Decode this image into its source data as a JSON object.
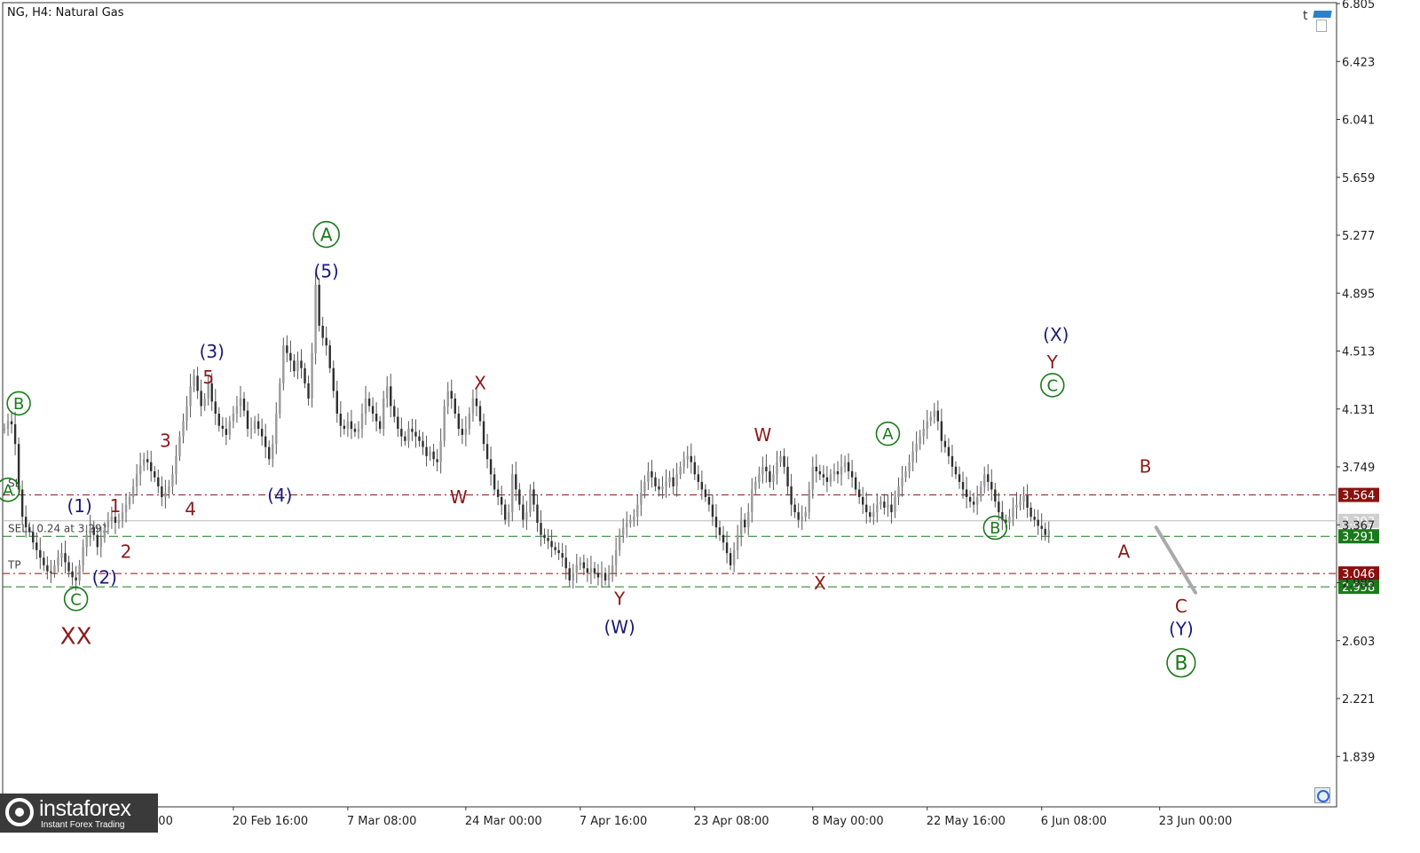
{
  "header": {
    "title": "NG, H4:  Natural Gas"
  },
  "chart_data": {
    "type": "candlestick",
    "symbol": "NG",
    "timeframe": "H4",
    "instrument": "Natural Gas",
    "y_ticks": [
      "6.805",
      "6.423",
      "6.041",
      "5.659",
      "5.277",
      "4.895",
      "4.513",
      "4.131",
      "3.749",
      "3.367",
      "2.985",
      "2.603",
      "2.221",
      "1.839"
    ],
    "ylim": [
      1.5,
      6.805
    ],
    "x_ticks": [
      {
        "label": "20 Feb 16:00",
        "i": 64
      },
      {
        "label": "7 Mar 08:00",
        "i": 96
      },
      {
        "label": "24 Mar 00:00",
        "i": 129
      },
      {
        "label": "7 Apr 16:00",
        "i": 161
      },
      {
        "label": "23 Apr 08:00",
        "i": 193
      },
      {
        "label": "8 May 00:00",
        "i": 226
      },
      {
        "label": "22 May 16:00",
        "i": 258
      },
      {
        "label": "6 Jun 08:00",
        "i": 290
      },
      {
        "label": "23 Jun 00:00",
        "i": 323
      }
    ],
    "partial_x_tick": "eb 00:00",
    "series": [
      {
        "name": "Natural Gas",
        "closes": [
          4.0,
          4.05,
          4.03,
          3.9,
          3.6,
          3.42,
          3.35,
          3.32,
          3.25,
          3.2,
          3.15,
          3.1,
          3.06,
          3.05,
          3.1,
          3.15,
          3.18,
          3.12,
          3.06,
          3.02,
          3.0,
          3.1,
          3.22,
          3.3,
          3.35,
          3.3,
          3.22,
          3.28,
          3.35,
          3.4,
          3.42,
          3.38,
          3.4,
          3.45,
          3.5,
          3.55,
          3.62,
          3.7,
          3.76,
          3.8,
          3.78,
          3.72,
          3.68,
          3.62,
          3.55,
          3.58,
          3.62,
          3.7,
          3.82,
          3.95,
          4.05,
          4.15,
          4.28,
          4.35,
          4.25,
          4.15,
          4.2,
          4.3,
          4.18,
          4.1,
          4.02,
          4.0,
          3.96,
          4.05,
          4.1,
          4.15,
          4.2,
          4.12,
          4.0,
          4.0,
          4.05,
          4.0,
          3.95,
          3.88,
          3.8,
          3.9,
          4.1,
          4.3,
          4.55,
          4.5,
          4.45,
          4.38,
          4.45,
          4.4,
          4.3,
          4.2,
          4.5,
          4.95,
          4.68,
          4.6,
          4.55,
          4.4,
          4.25,
          4.1,
          4.02,
          4.0,
          4.05,
          4.0,
          3.98,
          4.0,
          4.1,
          4.2,
          4.15,
          4.1,
          4.05,
          4.0,
          4.2,
          4.28,
          4.15,
          4.08,
          4.0,
          3.95,
          3.92,
          4.0,
          3.98,
          3.95,
          3.92,
          3.88,
          3.82,
          3.85,
          3.8,
          3.78,
          3.92,
          4.15,
          4.25,
          4.2,
          4.1,
          4.0,
          3.96,
          4.0,
          4.1,
          4.2,
          4.15,
          4.05,
          3.9,
          3.8,
          3.7,
          3.6,
          3.55,
          3.5,
          3.4,
          3.45,
          3.7,
          3.6,
          3.5,
          3.4,
          3.45,
          3.6,
          3.5,
          3.38,
          3.3,
          3.28,
          3.26,
          3.22,
          3.2,
          3.18,
          3.15,
          3.08,
          3.0,
          3.05,
          3.1,
          3.12,
          3.08,
          3.05,
          3.08,
          3.05,
          3.02,
          3.05,
          3.0,
          3.05,
          3.1,
          3.2,
          3.3,
          3.35,
          3.38,
          3.4,
          3.42,
          3.5,
          3.58,
          3.65,
          3.72,
          3.68,
          3.62,
          3.6,
          3.62,
          3.65,
          3.68,
          3.62,
          3.7,
          3.75,
          3.8,
          3.82,
          3.78,
          3.7,
          3.65,
          3.6,
          3.55,
          3.5,
          3.42,
          3.35,
          3.3,
          3.25,
          3.18,
          3.1,
          3.2,
          3.3,
          3.4,
          3.35,
          3.45,
          3.6,
          3.65,
          3.7,
          3.75,
          3.72,
          3.65,
          3.7,
          3.78,
          3.82,
          3.75,
          3.62,
          3.5,
          3.45,
          3.4,
          3.42,
          3.45,
          3.6,
          3.75,
          3.72,
          3.7,
          3.68,
          3.65,
          3.7,
          3.72,
          3.7,
          3.75,
          3.78,
          3.72,
          3.68,
          3.6,
          3.55,
          3.5,
          3.45,
          3.42,
          3.45,
          3.5,
          3.52,
          3.48,
          3.5,
          3.45,
          3.55,
          3.62,
          3.68,
          3.72,
          3.78,
          3.85,
          3.9,
          3.95,
          4.0,
          4.05,
          4.08,
          4.12,
          4.05,
          3.92,
          3.88,
          3.82,
          3.75,
          3.7,
          3.65,
          3.6,
          3.55,
          3.52,
          3.5,
          3.55,
          3.62,
          3.7,
          3.65,
          3.6,
          3.52,
          3.45,
          3.4,
          3.38,
          3.42,
          3.48,
          3.5,
          3.52,
          3.56,
          3.48,
          3.42,
          3.4,
          3.36,
          3.34,
          3.3,
          3.33
        ]
      },
      {
        "name": "projection",
        "points": [
          [
            322,
            3.35
          ],
          [
            333,
            2.92
          ]
        ]
      }
    ],
    "horizontal_levels": [
      {
        "value": 3.564,
        "label": "3.564",
        "style": "dash-dot",
        "color": "#8b1010"
      },
      {
        "value": 3.393,
        "label": "3.393",
        "style": "solid",
        "color": "#bbbbbb"
      },
      {
        "value": 3.291,
        "label": "3.291",
        "style": "dashed",
        "color": "#1a7a1a"
      },
      {
        "value": 3.046,
        "label": "3.046",
        "style": "dash-dot",
        "color": "#8b1010"
      },
      {
        "value": 2.958,
        "label": "2.958",
        "style": "dashed",
        "color": "#1a7a1a"
      }
    ],
    "line_texts": [
      {
        "text": "SL",
        "value": 3.6
      },
      {
        "text": "SELL 0.24 at 3.291",
        "value": 3.3
      },
      {
        "text": "TP",
        "value": 3.06
      }
    ],
    "annotations": [
      {
        "text": "(1)",
        "i": 21,
        "y": 3.45,
        "color": "#1a1a7a",
        "circled": false,
        "size": 20
      },
      {
        "text": "1",
        "i": 31,
        "y": 3.45,
        "color": "#8b1a1a",
        "circled": false,
        "size": 20
      },
      {
        "text": "(2)",
        "i": 28,
        "y": 2.98,
        "color": "#1a1a7a",
        "circled": false,
        "size": 20
      },
      {
        "text": "2",
        "i": 34,
        "y": 3.15,
        "color": "#8b1a1a",
        "circled": false,
        "size": 20
      },
      {
        "text": "3",
        "i": 45,
        "y": 3.88,
        "color": "#8b1a1a",
        "circled": false,
        "size": 20
      },
      {
        "text": "4",
        "i": 52,
        "y": 3.43,
        "color": "#8b1a1a",
        "circled": false,
        "size": 20
      },
      {
        "text": "(3)",
        "i": 58,
        "y": 4.47,
        "color": "#1a1a7a",
        "circled": false,
        "size": 20
      },
      {
        "text": "5",
        "i": 57,
        "y": 4.3,
        "color": "#8b1a1a",
        "circled": false,
        "size": 20
      },
      {
        "text": "(4)",
        "i": 77,
        "y": 3.52,
        "color": "#1a1a7a",
        "circled": false,
        "size": 20
      },
      {
        "text": "(5)",
        "i": 90,
        "y": 5.0,
        "color": "#1a1a7a",
        "circled": false,
        "size": 20
      },
      {
        "text": "A",
        "i": 90,
        "y": 5.24,
        "color": "#1a7a1a",
        "circled": true,
        "size": 20
      },
      {
        "text": "B",
        "i": 4,
        "y": 4.13,
        "color": "#1a7a1a",
        "circled": true,
        "size": 18
      },
      {
        "text": "A",
        "i": 1,
        "y": 3.56,
        "color": "#1a7a1a",
        "circled": true,
        "size": 18
      },
      {
        "text": "C",
        "i": 20,
        "y": 2.84,
        "color": "#1a7a1a",
        "circled": true,
        "size": 18
      },
      {
        "text": "XX",
        "i": 20,
        "y": 2.58,
        "color": "#8b1a1a",
        "circled": false,
        "size": 26
      },
      {
        "text": "X",
        "i": 133,
        "y": 4.26,
        "color": "#8b1a1a",
        "circled": false,
        "size": 20
      },
      {
        "text": "W",
        "i": 127,
        "y": 3.51,
        "color": "#8b1a1a",
        "circled": false,
        "size": 20
      },
      {
        "text": "Y",
        "i": 172,
        "y": 2.84,
        "color": "#8b1a1a",
        "circled": false,
        "size": 20
      },
      {
        "text": "(W)",
        "i": 172,
        "y": 2.65,
        "color": "#1a1a7a",
        "circled": false,
        "size": 20
      },
      {
        "text": "W",
        "i": 212,
        "y": 3.92,
        "color": "#8b1a1a",
        "circled": false,
        "size": 20
      },
      {
        "text": "X",
        "i": 228,
        "y": 2.94,
        "color": "#8b1a1a",
        "circled": false,
        "size": 20
      },
      {
        "text": "A",
        "i": 247,
        "y": 3.93,
        "color": "#1a7a1a",
        "circled": true,
        "size": 18
      },
      {
        "text": "B",
        "i": 277,
        "y": 3.31,
        "color": "#1a7a1a",
        "circled": true,
        "size": 18
      },
      {
        "text": "(X)",
        "i": 294,
        "y": 4.58,
        "color": "#1a1a7a",
        "circled": false,
        "size": 20
      },
      {
        "text": "Y",
        "i": 293,
        "y": 4.4,
        "color": "#8b1a1a",
        "circled": false,
        "size": 20
      },
      {
        "text": "C",
        "i": 293,
        "y": 4.25,
        "color": "#1a7a1a",
        "circled": true,
        "size": 18
      },
      {
        "text": "B",
        "i": 319,
        "y": 3.71,
        "color": "#8b1a1a",
        "circled": false,
        "size": 20
      },
      {
        "text": "A",
        "i": 313,
        "y": 3.15,
        "color": "#8b1a1a",
        "circled": false,
        "size": 20
      },
      {
        "text": "C",
        "i": 329,
        "y": 2.79,
        "color": "#8b1a1a",
        "circled": false,
        "size": 20
      },
      {
        "text": "(Y)",
        "i": 329,
        "y": 2.64,
        "color": "#1a1a7a",
        "circled": false,
        "size": 20
      },
      {
        "text": "B",
        "i": 329,
        "y": 2.41,
        "color": "#1a7a1a",
        "circled": true,
        "size": 22
      }
    ]
  },
  "logo": {
    "brand": "instaforex",
    "tagline": "Instant Forex Trading"
  },
  "corner": {
    "t_label": "t"
  }
}
